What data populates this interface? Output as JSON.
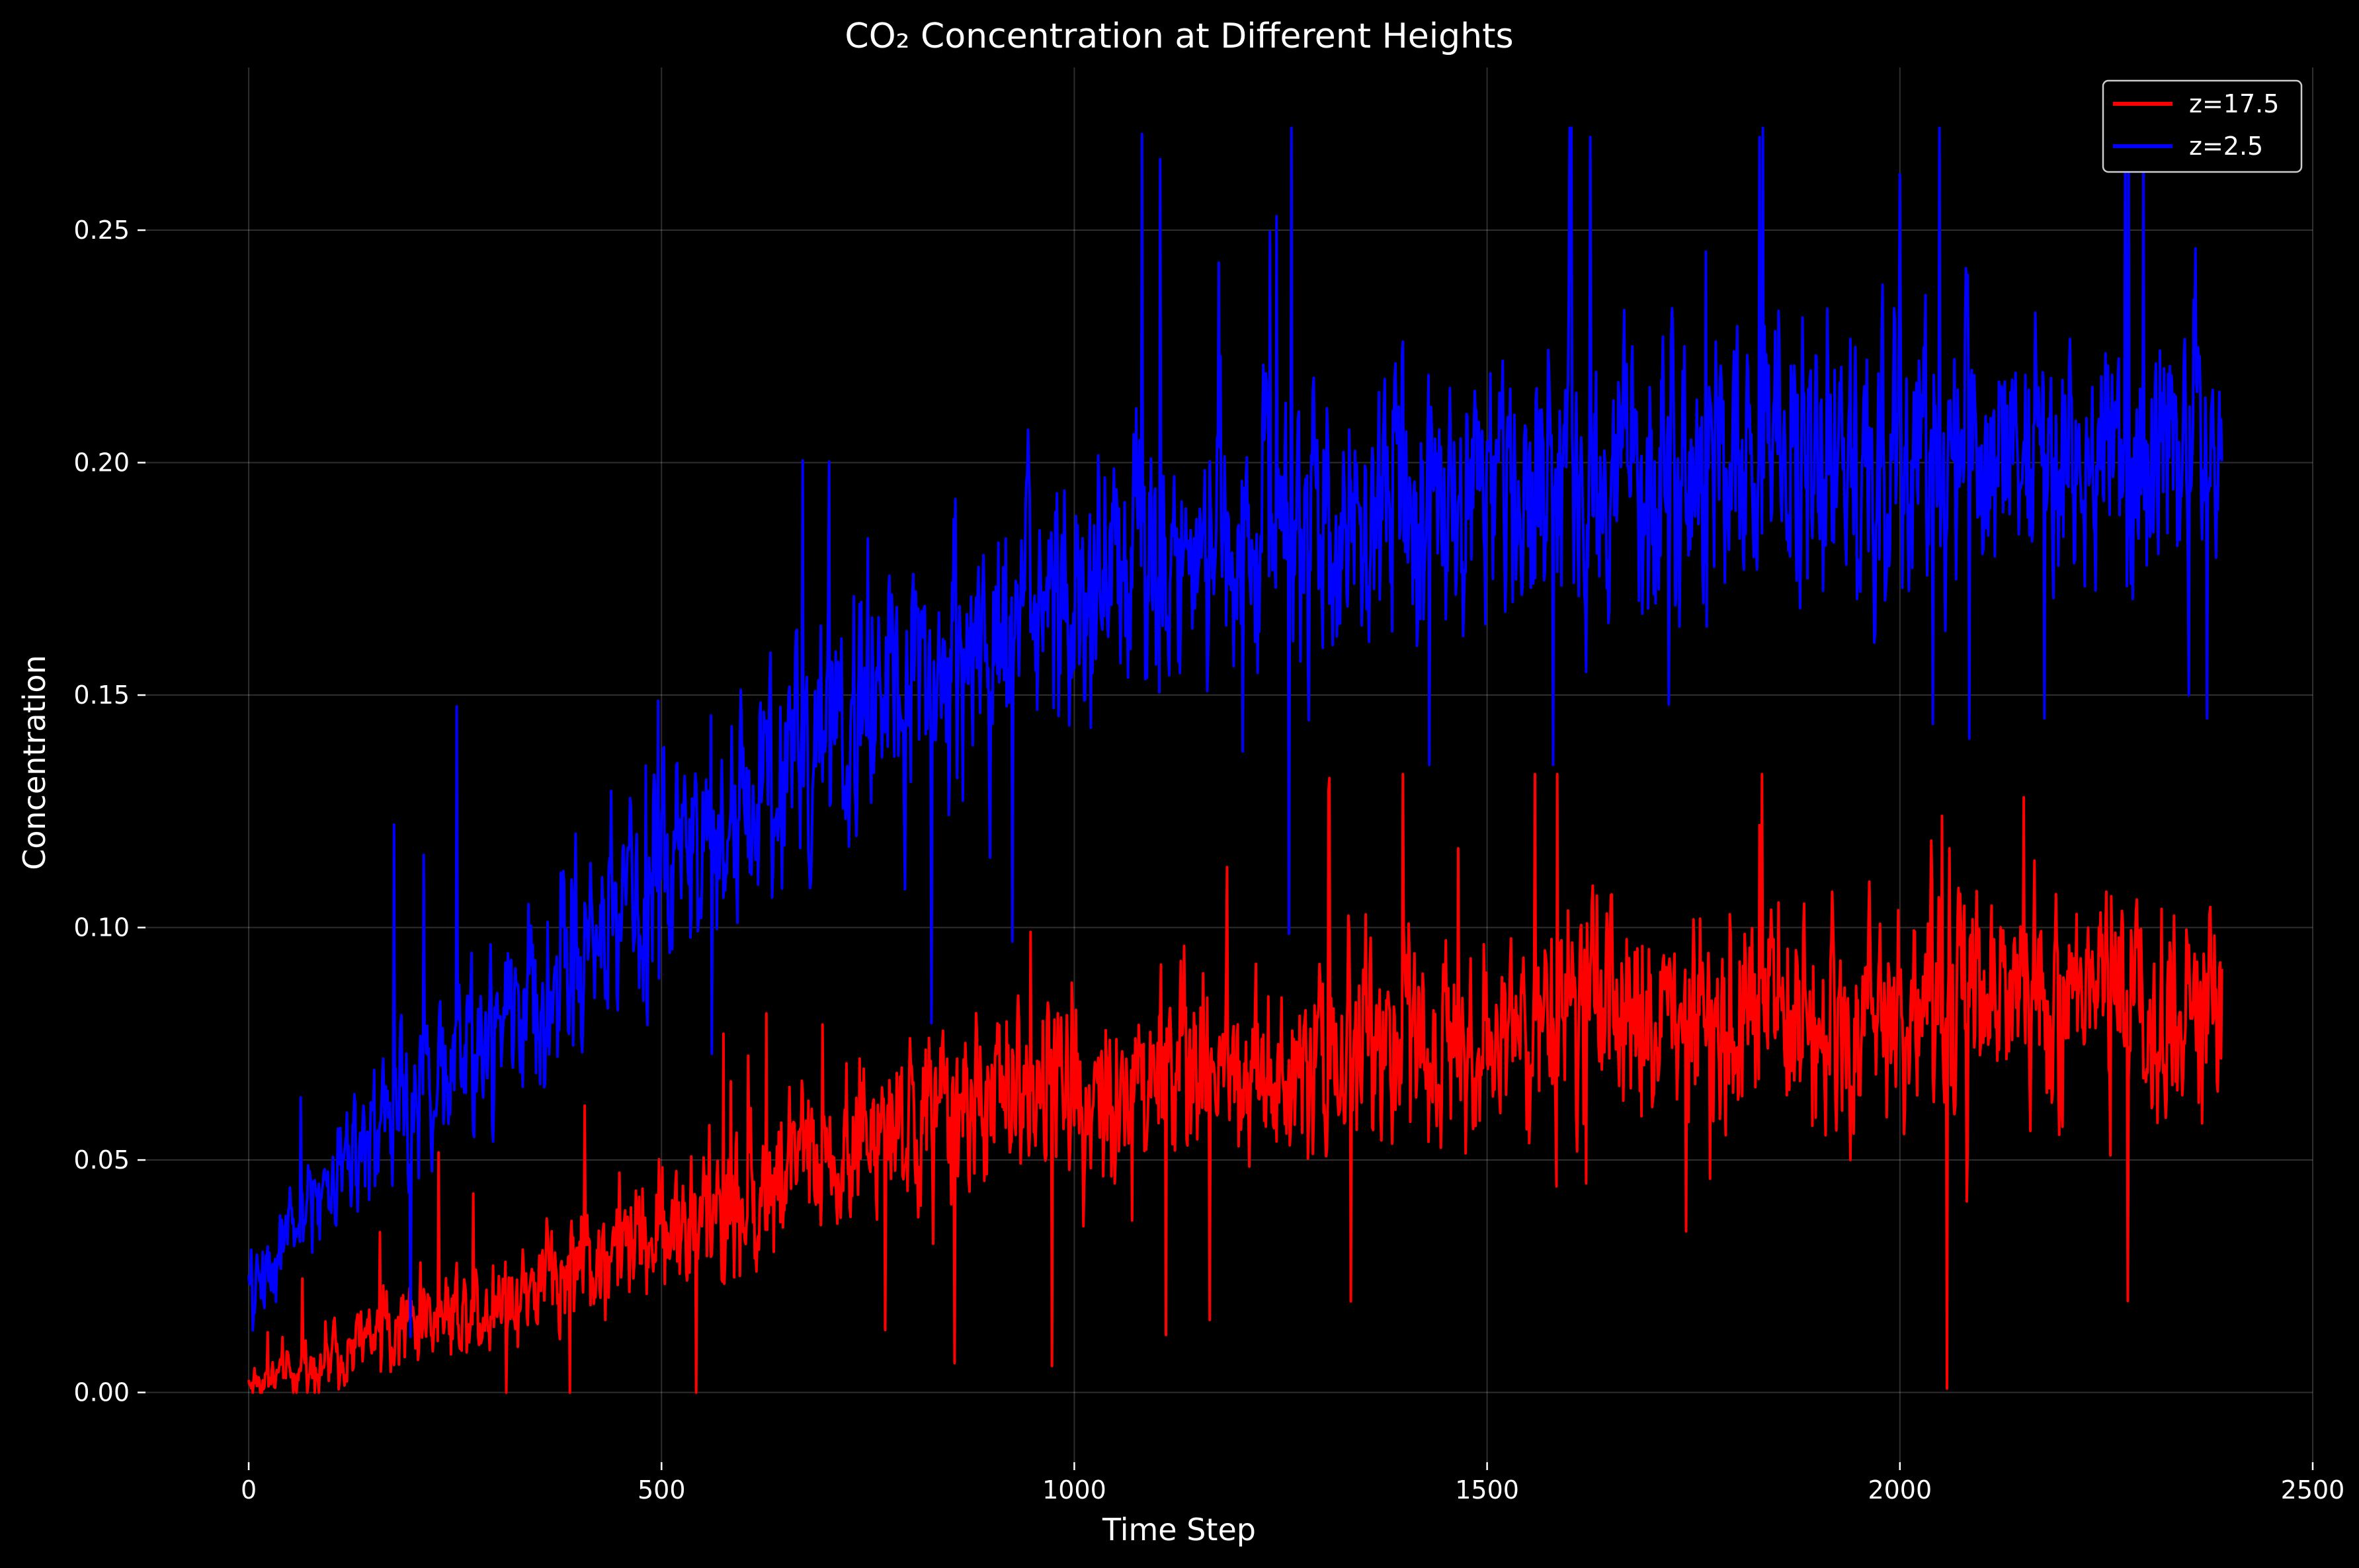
{
  "chart_data": {
    "type": "line",
    "title": "CO₂ Concentration at Different Heights",
    "xlabel": "Time Step",
    "ylabel": "Concentration",
    "xlim": [
      -125,
      2500
    ],
    "ylim": [
      -0.015,
      0.285
    ],
    "xticks": [
      0,
      500,
      1000,
      1500,
      2000,
      2500
    ],
    "xtick_labels": [
      "0",
      "500",
      "1000",
      "1500",
      "2000",
      "2500"
    ],
    "yticks": [
      0.0,
      0.05,
      0.1,
      0.15,
      0.2,
      0.25
    ],
    "ytick_labels": [
      "0.00",
      "0.05",
      "0.10",
      "0.15",
      "0.20",
      "0.25"
    ],
    "grid": true,
    "legend_position": "top-right",
    "x_max": 2390,
    "series": [
      {
        "name": "z=17.5",
        "color": "#ff0000",
        "trend": [
          [
            0,
            0.002
          ],
          [
            50,
            0.004
          ],
          [
            100,
            0.008
          ],
          [
            150,
            0.012
          ],
          [
            200,
            0.016
          ],
          [
            250,
            0.018
          ],
          [
            300,
            0.02
          ],
          [
            350,
            0.024
          ],
          [
            400,
            0.028
          ],
          [
            450,
            0.031
          ],
          [
            500,
            0.035
          ],
          [
            550,
            0.038
          ],
          [
            600,
            0.041
          ],
          [
            650,
            0.046
          ],
          [
            700,
            0.052
          ],
          [
            750,
            0.055
          ],
          [
            800,
            0.057
          ],
          [
            850,
            0.06
          ],
          [
            900,
            0.063
          ],
          [
            950,
            0.064
          ],
          [
            1000,
            0.066
          ],
          [
            1100,
            0.068
          ],
          [
            1200,
            0.071
          ],
          [
            1300,
            0.074
          ],
          [
            1400,
            0.077
          ],
          [
            1500,
            0.079
          ],
          [
            1600,
            0.08
          ],
          [
            1700,
            0.081
          ],
          [
            1800,
            0.082
          ],
          [
            1900,
            0.082
          ],
          [
            2000,
            0.083
          ],
          [
            2100,
            0.083
          ],
          [
            2200,
            0.083
          ],
          [
            2300,
            0.083
          ],
          [
            2390,
            0.084
          ]
        ],
        "spread": [
          [
            0,
            0.004
          ],
          [
            300,
            0.01
          ],
          [
            600,
            0.014
          ],
          [
            1000,
            0.018
          ],
          [
            1500,
            0.02
          ],
          [
            2390,
            0.02
          ]
        ],
        "min": 0.0,
        "max": 0.133,
        "extremes": [
          [
            1585,
            0.133
          ],
          [
            1465,
            0.117
          ],
          [
            1830,
            0.122
          ],
          [
            2150,
            0.128
          ],
          [
            2060,
            0.117
          ],
          [
            1185,
            0.113
          ],
          [
            1620,
            0.045
          ],
          [
            1770,
            0.046
          ],
          [
            1070,
            0.037
          ],
          [
            1940,
            0.05
          ],
          [
            2255,
            0.051
          ],
          [
            1245,
            0.054
          ]
        ]
      },
      {
        "name": "z=2.5",
        "color": "#0000ff",
        "trend": [
          [
            0,
            0.02
          ],
          [
            50,
            0.035
          ],
          [
            100,
            0.046
          ],
          [
            150,
            0.056
          ],
          [
            200,
            0.064
          ],
          [
            250,
            0.072
          ],
          [
            300,
            0.08
          ],
          [
            350,
            0.088
          ],
          [
            400,
            0.096
          ],
          [
            450,
            0.104
          ],
          [
            500,
            0.112
          ],
          [
            550,
            0.12
          ],
          [
            600,
            0.128
          ],
          [
            650,
            0.134
          ],
          [
            700,
            0.14
          ],
          [
            750,
            0.146
          ],
          [
            800,
            0.151
          ],
          [
            850,
            0.156
          ],
          [
            900,
            0.161
          ],
          [
            950,
            0.166
          ],
          [
            1000,
            0.17
          ],
          [
            1100,
            0.176
          ],
          [
            1200,
            0.182
          ],
          [
            1300,
            0.187
          ],
          [
            1400,
            0.191
          ],
          [
            1500,
            0.195
          ],
          [
            1600,
            0.197
          ],
          [
            1700,
            0.199
          ],
          [
            1800,
            0.2
          ],
          [
            1900,
            0.201
          ],
          [
            2000,
            0.202
          ],
          [
            2100,
            0.202
          ],
          [
            2200,
            0.203
          ],
          [
            2300,
            0.203
          ],
          [
            2390,
            0.205
          ]
        ],
        "spread": [
          [
            0,
            0.007
          ],
          [
            300,
            0.018
          ],
          [
            600,
            0.022
          ],
          [
            1000,
            0.026
          ],
          [
            1500,
            0.026
          ],
          [
            2390,
            0.025
          ]
        ],
        "min": 0.012,
        "max": 0.272,
        "extremes": [
          [
            1625,
            0.27
          ],
          [
            1830,
            0.27
          ],
          [
            2277,
            0.272
          ],
          [
            2295,
            0.268
          ],
          [
            1720,
            0.26
          ],
          [
            2000,
            0.262
          ],
          [
            1175,
            0.243
          ],
          [
            1245,
            0.253
          ],
          [
            925,
            0.097
          ],
          [
            1430,
            0.135
          ],
          [
            1580,
            0.135
          ],
          [
            2175,
            0.145
          ],
          [
            2372,
            0.145
          ],
          [
            1020,
            0.143
          ],
          [
            1620,
            0.155
          ],
          [
            1720,
            0.148
          ],
          [
            2350,
            0.15
          ]
        ]
      }
    ]
  }
}
